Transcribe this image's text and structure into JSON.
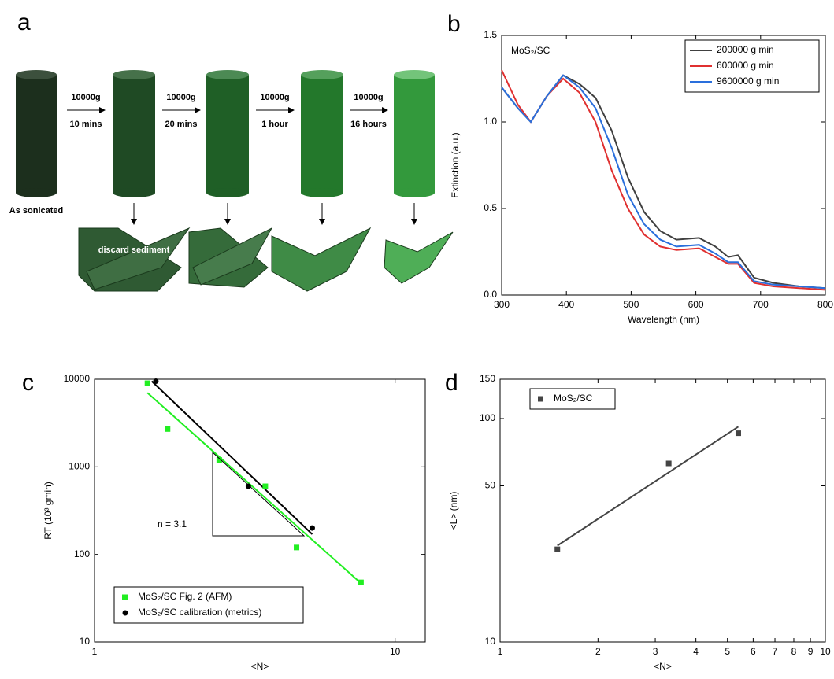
{
  "diagram": {
    "label": "a",
    "start": "As sonicated",
    "sediment": "discard sediment",
    "steps": [
      {
        "speed": "10000g",
        "time": "10 mins"
      },
      {
        "speed": "10000g",
        "time": "20 mins"
      },
      {
        "speed": "10000g",
        "time": "1 hour"
      },
      {
        "speed": "10000g",
        "time": "16 hours"
      }
    ]
  },
  "chart_data": [
    {
      "label": "b",
      "type": "line",
      "annotation": "MoS₂/SC",
      "x": [
        300,
        325,
        345,
        370,
        395,
        420,
        445,
        470,
        495,
        520,
        545,
        570,
        605,
        630,
        650,
        665,
        690,
        720,
        760,
        800
      ],
      "series": [
        {
          "name": "200000 g min",
          "color": "#404040",
          "values": [
            1.2,
            1.08,
            1.0,
            1.15,
            1.27,
            1.22,
            1.14,
            0.95,
            0.68,
            0.48,
            0.37,
            0.32,
            0.33,
            0.28,
            0.22,
            0.23,
            0.1,
            0.07,
            0.05,
            0.04
          ]
        },
        {
          "name": "600000 g min",
          "color": "#e03030",
          "values": [
            1.3,
            1.1,
            1.0,
            1.15,
            1.25,
            1.17,
            1.0,
            0.72,
            0.5,
            0.35,
            0.28,
            0.26,
            0.27,
            0.22,
            0.18,
            0.18,
            0.07,
            0.05,
            0.04,
            0.03
          ]
        },
        {
          "name": "9600000 g min",
          "color": "#2a6fdc",
          "values": [
            1.2,
            1.08,
            1.0,
            1.15,
            1.27,
            1.2,
            1.08,
            0.85,
            0.58,
            0.41,
            0.32,
            0.28,
            0.29,
            0.24,
            0.19,
            0.19,
            0.08,
            0.06,
            0.05,
            0.04
          ]
        }
      ],
      "xlim": [
        300,
        800
      ],
      "ylim": [
        0,
        1.5
      ],
      "xticks": [
        300,
        400,
        500,
        600,
        700,
        800
      ],
      "yticks": [
        {
          "value": 0,
          "label": "0.0"
        },
        0.5,
        {
          "value": 1,
          "label": "1.0"
        },
        1.5
      ],
      "xlabel": "Wavelength (nm)",
      "ylabel": "Extinction (a.u.)",
      "legend": "upper right"
    },
    {
      "label": "c",
      "type": "scatter",
      "log_x": true,
      "log_y": true,
      "annotation": "n = 3.1",
      "series": [
        {
          "name": "MoS₂/SC Fig. 2 (AFM)",
          "color": "#22ee22",
          "marker": "square",
          "x": [
            1.5,
            1.75,
            2.6,
            3.7,
            4.7,
            7.7
          ],
          "values": [
            9000,
            2700,
            1200,
            600,
            120,
            48
          ]
        },
        {
          "name": "MoS₂/SC calibration (metrics)",
          "color": "#000000",
          "marker": "circle",
          "x": [
            1.6,
            3.25,
            5.3
          ],
          "values": [
            9500,
            600,
            200
          ]
        }
      ],
      "fits": [
        {
          "color": "#22ee22",
          "x": [
            1.5,
            7.8
          ],
          "values": [
            7000,
            45
          ]
        },
        {
          "color": "#000000",
          "x": [
            1.55,
            5.3
          ],
          "values": [
            9500,
            170
          ]
        }
      ],
      "xlim": [
        1,
        12.6
      ],
      "ylim": [
        10,
        10000
      ],
      "xticks": [
        1,
        10
      ],
      "yticks": [
        10,
        100,
        1000,
        10000
      ],
      "xlabel": "<N>",
      "ylabel": "RT (10³ gmin)",
      "legend": "lower left"
    },
    {
      "label": "d",
      "type": "scatter",
      "log_x": true,
      "log_y": true,
      "series": [
        {
          "name": "MoS₂/SC",
          "color": "#444444",
          "marker": "square",
          "x": [
            1.5,
            3.3,
            5.4
          ],
          "values": [
            26,
            63,
            86
          ]
        }
      ],
      "fits": [
        {
          "color": "#444444",
          "x": [
            1.5,
            5.4
          ],
          "values": [
            27,
            92
          ]
        }
      ],
      "xlim": [
        1,
        10
      ],
      "ylim": [
        10,
        150
      ],
      "xticks": [
        1,
        2,
        3,
        4,
        5,
        6,
        7,
        8,
        9,
        10
      ],
      "yticks": [
        10,
        50,
        100,
        150
      ],
      "xlabel": "<N>",
      "ylabel": "<L> (nm)",
      "legend": "upper left"
    }
  ]
}
